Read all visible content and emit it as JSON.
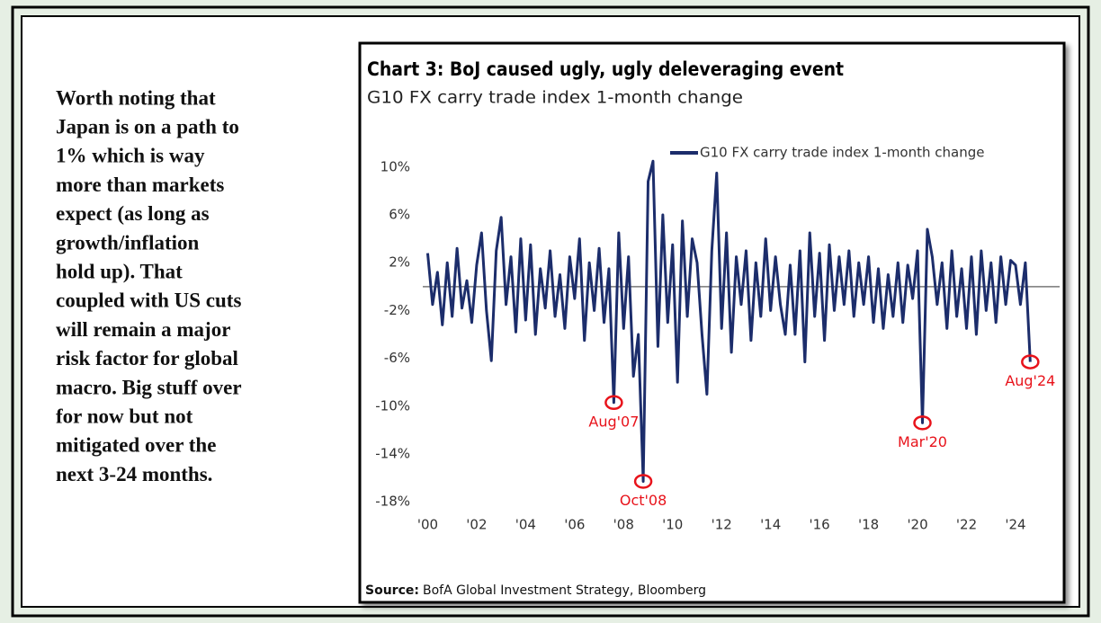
{
  "note": [
    "Worth noting that",
    "Japan is on a path to",
    "1% which is way",
    "more than markets",
    "expect (as long as",
    "growth/inflation",
    "hold up). That",
    "coupled with US cuts",
    "will remain a major",
    "risk factor for global",
    "macro. Big stuff over",
    "for now but not",
    "mitigated over the",
    "next 3-24 months."
  ],
  "chart_data": {
    "type": "line",
    "title": "Chart 3: BoJ caused ugly, ugly deleveraging event",
    "subtitle": "G10 FX carry trade index 1-month change",
    "source_label": "Source:",
    "source": "BofA Global Investment Strategy, Bloomberg",
    "x": [
      2000.0,
      2000.2,
      2000.4,
      2000.6,
      2000.8,
      2001.0,
      2001.2,
      2001.4,
      2001.6,
      2001.8,
      2002.0,
      2002.2,
      2002.4,
      2002.6,
      2002.8,
      2003.0,
      2003.2,
      2003.4,
      2003.6,
      2003.8,
      2004.0,
      2004.2,
      2004.4,
      2004.6,
      2004.8,
      2005.0,
      2005.2,
      2005.4,
      2005.6,
      2005.8,
      2006.0,
      2006.2,
      2006.4,
      2006.6,
      2006.8,
      2007.0,
      2007.2,
      2007.4,
      2007.6,
      2007.8,
      2008.0,
      2008.2,
      2008.4,
      2008.6,
      2008.8,
      2009.0,
      2009.2,
      2009.4,
      2009.6,
      2009.8,
      2010.0,
      2010.2,
      2010.4,
      2010.6,
      2010.8,
      2011.0,
      2011.2,
      2011.4,
      2011.6,
      2011.8,
      2012.0,
      2012.2,
      2012.4,
      2012.6,
      2012.8,
      2013.0,
      2013.2,
      2013.4,
      2013.6,
      2013.8,
      2014.0,
      2014.2,
      2014.4,
      2014.6,
      2014.8,
      2015.0,
      2015.2,
      2015.4,
      2015.6,
      2015.8,
      2016.0,
      2016.2,
      2016.4,
      2016.6,
      2016.8,
      2017.0,
      2017.2,
      2017.4,
      2017.6,
      2017.8,
      2018.0,
      2018.2,
      2018.4,
      2018.6,
      2018.8,
      2019.0,
      2019.2,
      2019.4,
      2019.6,
      2019.8,
      2020.0,
      2020.2,
      2020.4,
      2020.6,
      2020.8,
      2021.0,
      2021.2,
      2021.4,
      2021.6,
      2021.8,
      2022.0,
      2022.2,
      2022.4,
      2022.6,
      2022.8,
      2023.0,
      2023.2,
      2023.4,
      2023.6,
      2023.8,
      2024.0,
      2024.2,
      2024.4,
      2024.6
    ],
    "series": [
      {
        "name": "G10 FX carry trade index 1-month change",
        "color": "#1c2d6b",
        "values": [
          2.8,
          -1.5,
          1.2,
          -3.2,
          2.0,
          -2.5,
          3.2,
          -1.8,
          0.5,
          -3.0,
          1.8,
          4.5,
          -2.0,
          -6.2,
          3.0,
          5.8,
          -1.5,
          2.5,
          -3.8,
          4.0,
          -2.8,
          3.5,
          -4.0,
          1.5,
          -1.8,
          3.0,
          -2.5,
          1.0,
          -3.5,
          2.5,
          -1.0,
          4.0,
          -4.5,
          2.0,
          -2.0,
          3.2,
          -3.0,
          1.5,
          -9.7,
          4.5,
          -3.5,
          2.5,
          -7.5,
          -4.0,
          -16.3,
          8.8,
          10.5,
          -5.0,
          6.0,
          -3.0,
          3.5,
          -8.0,
          5.5,
          -2.5,
          4.0,
          2.0,
          -4.0,
          -9.0,
          3.0,
          9.5,
          -3.5,
          4.5,
          -5.5,
          2.5,
          -1.5,
          3.0,
          -4.5,
          2.0,
          -2.5,
          4.0,
          -2.0,
          2.5,
          -1.5,
          -4.0,
          1.8,
          -4.0,
          3.0,
          -6.3,
          4.5,
          -2.5,
          2.8,
          -4.5,
          3.5,
          -2.0,
          2.5,
          -1.5,
          3.0,
          -2.5,
          2.0,
          -1.5,
          2.5,
          -3.0,
          1.5,
          -3.5,
          1.0,
          -2.5,
          2.0,
          -3.0,
          1.8,
          -1.0,
          3.0,
          -11.4,
          4.8,
          2.5,
          -1.5,
          2.0,
          -3.5,
          3.0,
          -2.5,
          1.5,
          -3.5,
          2.5,
          -4.0,
          3.0,
          -2.0,
          2.0,
          -3.0,
          2.5,
          -1.5,
          2.2,
          1.8,
          -1.5,
          2.0,
          -6.3
        ]
      }
    ],
    "annotations": [
      {
        "text": "Aug'07",
        "x": 2007.6,
        "y": -9.7,
        "color": "#e8131b"
      },
      {
        "text": "Oct'08",
        "x": 2008.8,
        "y": -16.3,
        "color": "#e8131b"
      },
      {
        "text": "Mar'20",
        "x": 2020.2,
        "y": -11.4,
        "color": "#e8131b"
      },
      {
        "text": "Aug'24",
        "x": 2024.6,
        "y": -6.3,
        "color": "#e8131b"
      }
    ],
    "xlim": [
      1999.8,
      2025.8
    ],
    "xticks": [
      {
        "value": 2000,
        "label": "'00"
      },
      {
        "value": 2002,
        "label": "'02"
      },
      {
        "value": 2004,
        "label": "'04"
      },
      {
        "value": 2006,
        "label": "'06"
      },
      {
        "value": 2008,
        "label": "'08"
      },
      {
        "value": 2010,
        "label": "'10"
      },
      {
        "value": 2012,
        "label": "'12"
      },
      {
        "value": 2014,
        "label": "'14"
      },
      {
        "value": 2016,
        "label": "'16"
      },
      {
        "value": 2018,
        "label": "'18"
      },
      {
        "value": 2020,
        "label": "'20"
      },
      {
        "value": 2022,
        "label": "'22"
      },
      {
        "value": 2024,
        "label": "'24"
      }
    ],
    "ylim": [
      -20.4,
      12.7
    ],
    "yticks": [
      {
        "value": 10,
        "label": "10%"
      },
      {
        "value": 6,
        "label": "6%"
      },
      {
        "value": 2,
        "label": "2%"
      },
      {
        "value": -2,
        "label": "-2%"
      },
      {
        "value": -6,
        "label": "-6%"
      },
      {
        "value": -10,
        "label": "-10%"
      },
      {
        "value": -14,
        "label": "-14%"
      },
      {
        "value": -18,
        "label": "-18%"
      }
    ],
    "grid": false,
    "legend": "top"
  }
}
